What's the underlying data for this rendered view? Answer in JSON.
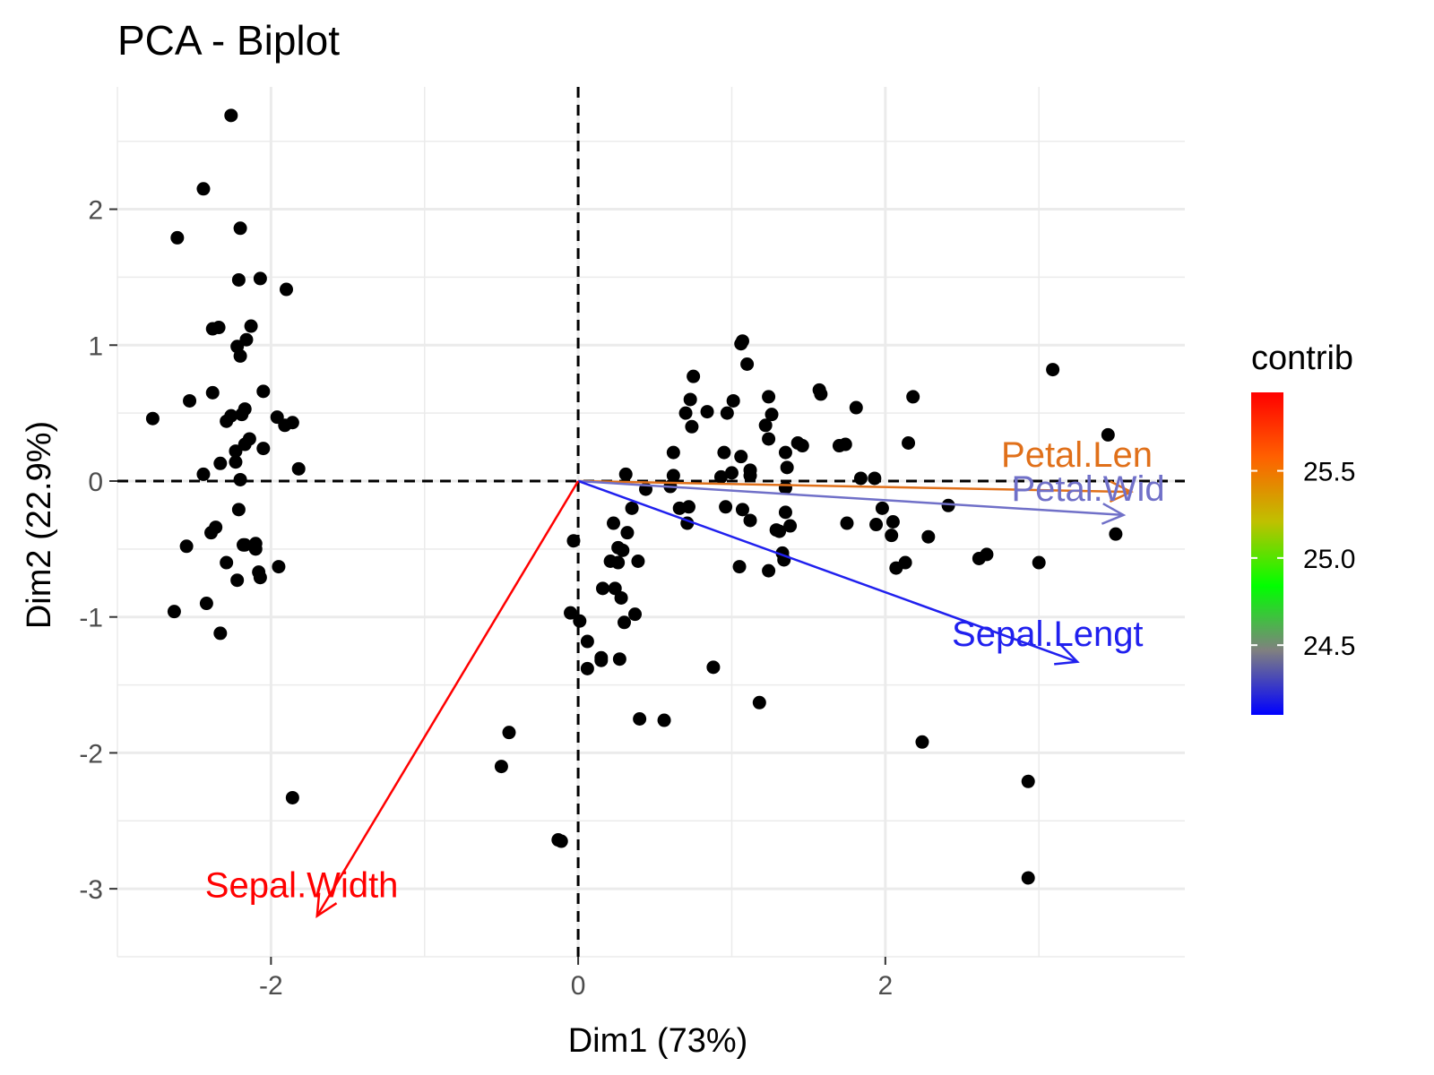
{
  "chart_data": {
    "type": "scatter",
    "title": "PCA - Biplot",
    "xlabel": "Dim1 (73%)",
    "ylabel": "Dim2 (22.9%)",
    "xlim": [
      -3.0,
      3.95
    ],
    "ylim": [
      -3.5,
      2.9
    ],
    "x_ticks": [
      -2,
      0,
      2
    ],
    "x_tick_labels": [
      "-2",
      "0",
      "2"
    ],
    "y_ticks": [
      -3,
      -2,
      -1,
      0,
      1,
      2
    ],
    "y_tick_labels": [
      "-3",
      "-2",
      "-1",
      "0",
      "1",
      "2"
    ],
    "grid": true,
    "reference_lines": {
      "x": 0,
      "y": 0,
      "style": "dashed"
    },
    "points": [
      [
        -2.26,
        0.48
      ],
      [
        -2.08,
        -0.67
      ],
      [
        -2.36,
        -0.34
      ],
      [
        -2.29,
        -0.6
      ],
      [
        -2.38,
        0.65
      ],
      [
        -2.07,
        1.49
      ],
      [
        -2.44,
        0.05
      ],
      [
        -2.23,
        0.22
      ],
      [
        -2.33,
        -1.12
      ],
      [
        -2.18,
        -0.47
      ],
      [
        -2.16,
        1.04
      ],
      [
        -2.33,
        0.13
      ],
      [
        -2.22,
        -0.73
      ],
      [
        -2.63,
        -0.96
      ],
      [
        -2.2,
        1.86
      ],
      [
        -2.26,
        2.69
      ],
      [
        -2.21,
        1.48
      ],
      [
        -2.19,
        0.49
      ],
      [
        -1.9,
        1.41
      ],
      [
        -2.34,
        1.13
      ],
      [
        -1.91,
        0.41
      ],
      [
        -2.2,
        0.92
      ],
      [
        -2.77,
        0.46
      ],
      [
        -1.82,
        0.09
      ],
      [
        -2.23,
        0.14
      ],
      [
        -1.95,
        -0.63
      ],
      [
        -2.05,
        0.24
      ],
      [
        -2.17,
        0.53
      ],
      [
        -2.14,
        0.31
      ],
      [
        -2.17,
        -0.47
      ],
      [
        -2.1,
        -0.5
      ],
      [
        -1.86,
        0.43
      ],
      [
        -2.61,
        1.79
      ],
      [
        -2.44,
        2.15
      ],
      [
        -2.1,
        -0.46
      ],
      [
        -2.21,
        -0.21
      ],
      [
        -2.05,
        0.66
      ],
      [
        -2.53,
        0.59
      ],
      [
        -2.42,
        -0.9
      ],
      [
        -2.17,
        0.27
      ],
      [
        -2.29,
        0.44
      ],
      [
        -1.86,
        -2.33
      ],
      [
        -2.55,
        -0.48
      ],
      [
        -1.96,
        0.47
      ],
      [
        -2.13,
        1.14
      ],
      [
        -2.07,
        -0.71
      ],
      [
        -2.38,
        1.12
      ],
      [
        -2.39,
        -0.38
      ],
      [
        -2.22,
        0.99
      ],
      [
        -2.2,
        0.01
      ],
      [
        1.1,
        0.86
      ],
      [
        0.73,
        0.6
      ],
      [
        1.24,
        0.62
      ],
      [
        0.4,
        -1.75
      ],
      [
        1.07,
        -0.21
      ],
      [
        0.39,
        -0.59
      ],
      [
        0.75,
        0.77
      ],
      [
        -0.45,
        -1.85
      ],
      [
        0.93,
        0.03
      ],
      [
        0.01,
        -1.03
      ],
      [
        -0.11,
        -2.65
      ],
      [
        0.44,
        -0.06
      ],
      [
        0.56,
        -1.76
      ],
      [
        0.72,
        -0.19
      ],
      [
        -0.03,
        -0.44
      ],
      [
        0.7,
        0.5
      ],
      [
        0.35,
        -0.2
      ],
      [
        0.16,
        -0.79
      ],
      [
        1.18,
        -1.63
      ],
      [
        0.15,
        -1.3
      ],
      [
        0.74,
        0.4
      ],
      [
        0.32,
        -0.38
      ],
      [
        1.24,
        -0.66
      ],
      [
        0.66,
        -0.2
      ],
      [
        0.62,
        0.04
      ],
      [
        0.84,
        0.51
      ],
      [
        1.26,
        0.49
      ],
      [
        1.43,
        0.28
      ],
      [
        0.71,
        -0.31
      ],
      [
        -0.05,
        -0.97
      ],
      [
        0.15,
        -1.32
      ],
      [
        0.06,
        -1.18
      ],
      [
        0.24,
        -0.79
      ],
      [
        1.05,
        -0.63
      ],
      [
        0.23,
        -0.31
      ],
      [
        0.31,
        0.05
      ],
      [
        0.97,
        0.5
      ],
      [
        0.88,
        -1.37
      ],
      [
        0.26,
        -0.6
      ],
      [
        0.27,
        -1.31
      ],
      [
        0.3,
        -1.04
      ],
      [
        0.62,
        0.21
      ],
      [
        0.37,
        -0.98
      ],
      [
        -0.13,
        -2.64
      ],
      [
        0.28,
        -0.86
      ],
      [
        0.21,
        -0.59
      ],
      [
        0.29,
        -0.51
      ],
      [
        0.6,
        -0.04
      ],
      [
        -0.5,
        -2.1
      ],
      [
        0.26,
        -0.49
      ],
      [
        1.84,
        0.02
      ],
      [
        1.12,
        -0.29
      ],
      [
        2.28,
        -0.41
      ],
      [
        1.35,
        -0.23
      ],
      [
        1.75,
        -0.31
      ],
      [
        3.0,
        -0.6
      ],
      [
        0.06,
        -1.38
      ],
      [
        2.61,
        -0.57
      ],
      [
        2.18,
        0.62
      ],
      [
        2.24,
        -1.92
      ],
      [
        1.34,
        -0.58
      ],
      [
        1.46,
        0.26
      ],
      [
        1.94,
        -0.32
      ],
      [
        1.07,
        1.03
      ],
      [
        1.01,
        0.59
      ],
      [
        1.33,
        -0.53
      ],
      [
        1.38,
        -0.33
      ],
      [
        2.93,
        -2.92
      ],
      [
        3.45,
        0.34
      ],
      [
        1.06,
        1.01
      ],
      [
        2.13,
        -0.6
      ],
      [
        0.95,
        0.21
      ],
      [
        3.5,
        -0.39
      ],
      [
        1.35,
        0.21
      ],
      [
        2.07,
        -0.64
      ],
      [
        2.41,
        -0.18
      ],
      [
        1.24,
        0.31
      ],
      [
        1.12,
        0.04
      ],
      [
        1.7,
        0.26
      ],
      [
        2.15,
        0.28
      ],
      [
        2.66,
        -0.54
      ],
      [
        2.93,
        -2.21
      ],
      [
        1.74,
        0.27
      ],
      [
        1.22,
        0.41
      ],
      [
        1.58,
        0.64
      ],
      [
        3.09,
        0.82
      ],
      [
        1.31,
        -0.37
      ],
      [
        1.35,
        -0.05
      ],
      [
        1.0,
        0.06
      ],
      [
        1.93,
        0.02
      ],
      [
        2.05,
        -0.3
      ],
      [
        1.81,
        0.54
      ],
      [
        1.12,
        0.08
      ],
      [
        2.04,
        -0.4
      ],
      [
        1.98,
        -0.2
      ],
      [
        1.57,
        0.67
      ],
      [
        1.06,
        0.18
      ],
      [
        1.29,
        -0.36
      ],
      [
        1.36,
        0.1
      ],
      [
        0.96,
        -0.19
      ]
    ],
    "point_color": "#000000",
    "variables": [
      {
        "name": "Petal.Length",
        "label": "Petal.Len",
        "x": 3.6,
        "y": -0.08,
        "contrib": 25.88,
        "color": "#e0701a"
      },
      {
        "name": "Petal.Width",
        "label": "Petal.Wid",
        "x": 3.55,
        "y": -0.25,
        "contrib": 24.33,
        "color": "#7070c8"
      },
      {
        "name": "Sepal.Length",
        "label": "Sepal.Lengt",
        "x": 3.25,
        "y": -1.33,
        "contrib": 24.12,
        "color": "#2020ee"
      },
      {
        "name": "Sepal.Width",
        "label": "Sepal.Width",
        "x": -1.7,
        "y": -3.2,
        "contrib": 25.9,
        "color": "#ff0000"
      }
    ],
    "legend": {
      "title": "contrib",
      "type": "colorbar",
      "placement": "right",
      "range": [
        24.1,
        25.95
      ],
      "ticks": [
        24.5,
        25.0,
        25.5
      ],
      "tick_labels": [
        "24.5",
        "25.0",
        "25.5"
      ],
      "colors": [
        "#0000ff",
        "#808080",
        "#00ff00",
        "#c0c000",
        "#ff6000",
        "#ff0000"
      ]
    }
  }
}
